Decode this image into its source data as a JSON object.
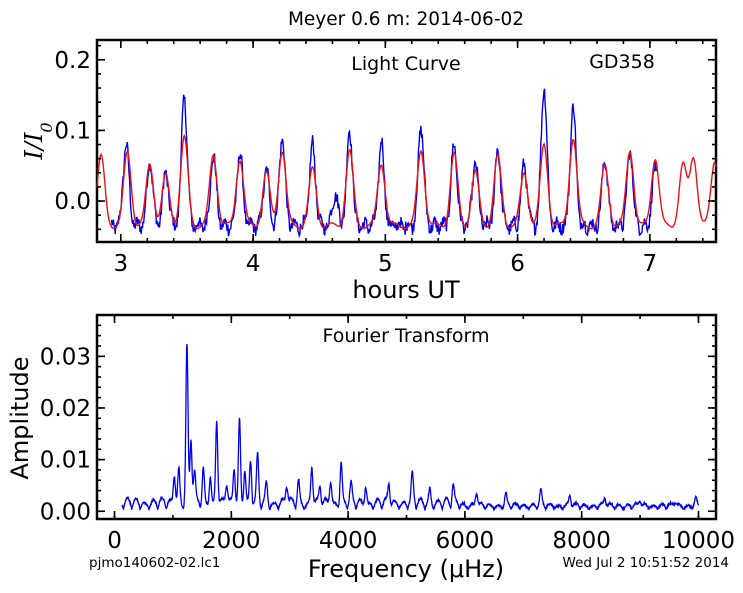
{
  "figure": {
    "title": "Meyer 0.6 m:  2014-06-02",
    "footer_left": "pjmo140602-02.lc1",
    "footer_right": "Wed Jul  2 10:51:52 2014"
  },
  "colors": {
    "data": "#0000ee",
    "model": "#ee1111",
    "axis": "#000000"
  },
  "chart_data": [
    {
      "type": "line",
      "panel": "light_curve",
      "title": "Light Curve",
      "annotation": "GD358",
      "xlabel": "hours UT",
      "ylabel": "I/I0",
      "xlim": [
        2.82,
        7.5
      ],
      "ylim": [
        -0.058,
        0.228
      ],
      "xticks": [
        3,
        4,
        5,
        6,
        7
      ],
      "yticks": [
        0.0,
        0.1,
        0.2
      ],
      "ytick_labels": [
        "0.0",
        "0.1",
        "0.2"
      ],
      "grid": false,
      "series": [
        {
          "color": "#0000ee",
          "x_range": [
            2.93,
            7.05
          ],
          "peaks": [
            [
              3.04,
              0.082
            ],
            [
              3.22,
              0.057
            ],
            [
              3.34,
              0.04
            ],
            [
              3.48,
              0.148
            ],
            [
              3.7,
              0.064
            ],
            [
              3.9,
              0.069
            ],
            [
              4.1,
              0.045
            ],
            [
              4.22,
              0.091
            ],
            [
              4.45,
              0.08
            ],
            [
              4.62,
              0.01
            ],
            [
              4.73,
              0.1
            ],
            [
              4.97,
              0.082
            ],
            [
              5.27,
              0.105
            ],
            [
              5.52,
              0.08
            ],
            [
              5.68,
              0.055
            ],
            [
              5.85,
              0.072
            ],
            [
              6.05,
              0.052
            ],
            [
              6.2,
              0.163
            ],
            [
              6.42,
              0.133
            ],
            [
              6.66,
              0.06
            ],
            [
              6.85,
              0.07
            ],
            [
              7.04,
              0.045
            ]
          ]
        },
        {
          "color": "#ee1111",
          "x_range": [
            2.82,
            7.5
          ],
          "peaks": [
            [
              2.85,
              0.063
            ],
            [
              3.05,
              0.068
            ],
            [
              3.22,
              0.052
            ],
            [
              3.34,
              0.035
            ],
            [
              3.48,
              0.089
            ],
            [
              3.7,
              0.066
            ],
            [
              3.9,
              0.06
            ],
            [
              4.1,
              0.04
            ],
            [
              4.22,
              0.072
            ],
            [
              4.45,
              0.045
            ],
            [
              4.73,
              0.07
            ],
            [
              4.97,
              0.054
            ],
            [
              5.27,
              0.072
            ],
            [
              5.52,
              0.066
            ],
            [
              5.68,
              0.04
            ],
            [
              5.85,
              0.062
            ],
            [
              6.05,
              0.04
            ],
            [
              6.2,
              0.08
            ],
            [
              6.42,
              0.09
            ],
            [
              6.66,
              0.05
            ],
            [
              6.85,
              0.072
            ],
            [
              7.04,
              0.062
            ],
            [
              7.25,
              0.05
            ],
            [
              7.33,
              0.063
            ],
            [
              7.49,
              0.058
            ]
          ]
        }
      ]
    },
    {
      "type": "line",
      "panel": "fourier_transform",
      "title": "Fourier Transform",
      "xlabel": "Frequency (μHz)",
      "ylabel": "Amplitude",
      "xlim": [
        -300,
        10300
      ],
      "ylim": [
        -0.0015,
        0.038
      ],
      "xticks": [
        0,
        2000,
        4000,
        6000,
        8000,
        10000
      ],
      "yticks": [
        0.0,
        0.01,
        0.02,
        0.03
      ],
      "ytick_labels": [
        "0.00",
        "0.01",
        "0.02",
        "0.03"
      ],
      "grid": false,
      "series": [
        {
          "color": "#0000ee",
          "x_range": [
            130,
            10000
          ],
          "peaks": [
            [
              1025,
              0.0062
            ],
            [
              1100,
              0.0072
            ],
            [
              1240,
              0.0305
            ],
            [
              1310,
              0.0125
            ],
            [
              1370,
              0.006
            ],
            [
              1520,
              0.007
            ],
            [
              1640,
              0.006
            ],
            [
              1750,
              0.0163
            ],
            [
              1920,
              0.0045
            ],
            [
              2050,
              0.0072
            ],
            [
              2140,
              0.0165
            ],
            [
              2230,
              0.007
            ],
            [
              2330,
              0.0082
            ],
            [
              2450,
              0.009
            ],
            [
              2600,
              0.004
            ],
            [
              2950,
              0.004
            ],
            [
              3150,
              0.0045
            ],
            [
              3380,
              0.0075
            ],
            [
              3520,
              0.0035
            ],
            [
              3700,
              0.005
            ],
            [
              3880,
              0.008
            ],
            [
              4050,
              0.0035
            ],
            [
              4300,
              0.0038
            ],
            [
              4700,
              0.004
            ],
            [
              5100,
              0.0055
            ],
            [
              5400,
              0.003
            ],
            [
              5800,
              0.0035
            ],
            [
              6200,
              0.003
            ],
            [
              6700,
              0.0025
            ],
            [
              7300,
              0.003
            ],
            [
              7800,
              0.0022
            ],
            [
              8400,
              0.0018
            ],
            [
              9000,
              0.0015
            ],
            [
              9600,
              0.0012
            ],
            [
              9950,
              0.0015
            ]
          ]
        }
      ]
    }
  ]
}
